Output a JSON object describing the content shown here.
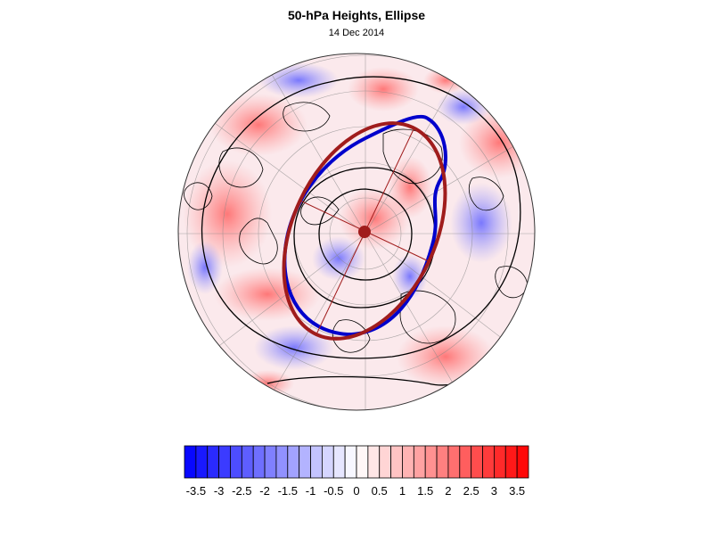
{
  "title": "50-hPa Heights, Ellipse",
  "date": "14 Dec 2014",
  "colors": {
    "ellipse": "#a01c1c",
    "contour_thick": "#0000cc",
    "negative": "#0000ff",
    "positive": "#ff0000"
  },
  "colorbar": {
    "min": -3.75,
    "max": 3.75,
    "step": 0.25,
    "tick_labels": [
      "-3.5",
      "-3",
      "-2.5",
      "-2",
      "-1.5",
      "-1",
      "-0.5",
      "0",
      "0.5",
      "1",
      "1.5",
      "2",
      "2.5",
      "3",
      "3.5"
    ]
  }
}
